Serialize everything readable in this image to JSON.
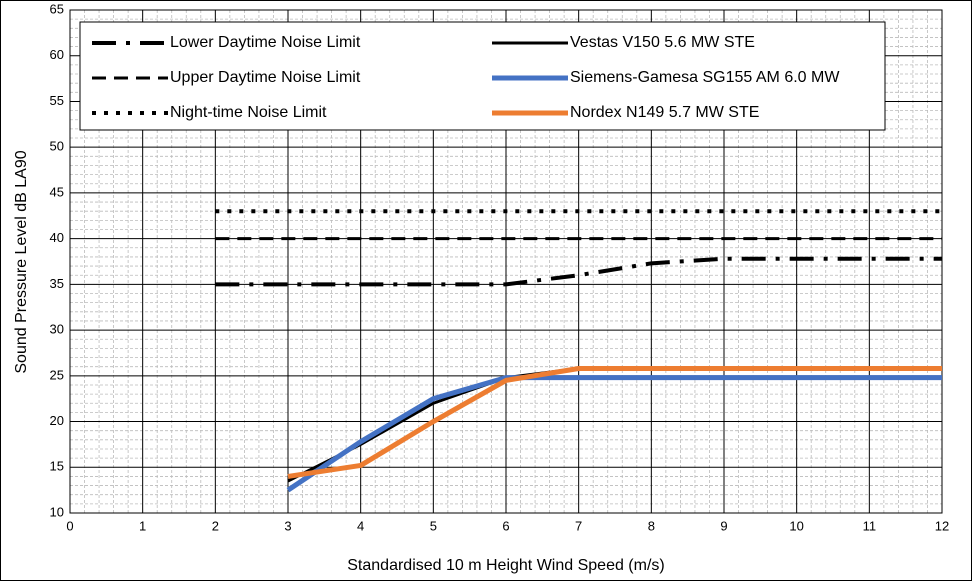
{
  "chart_data": {
    "type": "line",
    "x_label": "Standardised 10 m Height Wind Speed (m/s)",
    "y_label": "Sound Pressure Level dB LA90",
    "x": [
      2,
      3,
      4,
      5,
      6,
      7,
      8,
      9,
      10,
      11,
      12
    ],
    "xlim": [
      0,
      12
    ],
    "xticks": [
      0,
      1,
      2,
      3,
      4,
      5,
      6,
      7,
      8,
      9,
      10,
      11,
      12
    ],
    "ylim": [
      10,
      65
    ],
    "yticks": [
      10,
      15,
      20,
      25,
      30,
      35,
      40,
      45,
      50,
      55,
      60,
      65
    ],
    "grid": true,
    "series": [
      {
        "name": "Lower Daytime Noise Limit",
        "color": "#000000",
        "dash": "dash-dot",
        "values": [
          35,
          35,
          35,
          35,
          35,
          36,
          37.3,
          37.8,
          37.8,
          37.8,
          37.8
        ]
      },
      {
        "name": "Vestas V150 5.6 MW STE",
        "color": "#000000",
        "dash": "solid",
        "values": [
          null,
          13.5,
          17.5,
          22,
          24.8,
          25.8,
          25.8,
          25.8,
          25.8,
          25.8,
          25.8
        ]
      },
      {
        "name": "Upper Daytime Noise Limit",
        "color": "#000000",
        "dash": "dash",
        "values": [
          40,
          40,
          40,
          40,
          40,
          40,
          40,
          40,
          40,
          40,
          40
        ]
      },
      {
        "name": "Siemens-Gamesa SG155 AM 6.0 MW",
        "color": "#4472c4",
        "dash": "solid",
        "values": [
          null,
          12.5,
          17.8,
          22.5,
          24.8,
          24.8,
          24.8,
          24.8,
          24.8,
          24.8,
          24.8
        ]
      },
      {
        "name": "Night-time Noise Limit",
        "color": "#000000",
        "dash": "dot",
        "values": [
          43,
          43,
          43,
          43,
          43,
          43,
          43,
          43,
          43,
          43,
          43
        ]
      },
      {
        "name": "Nordex N149 5.7 MW STE",
        "color": "#ed7d31",
        "dash": "solid",
        "values": [
          null,
          14,
          15.2,
          20,
          24.5,
          25.8,
          25.8,
          25.8,
          25.8,
          25.8,
          25.8
        ]
      }
    ]
  }
}
